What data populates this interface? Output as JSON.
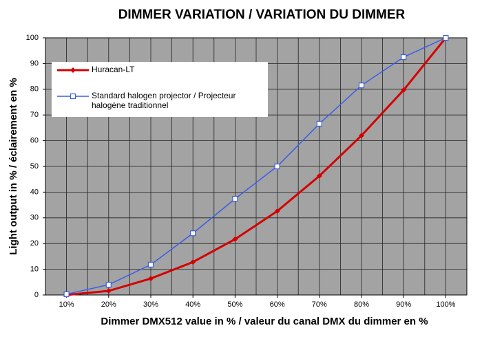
{
  "chart_data": {
    "type": "line",
    "title": "DIMMER VARIATION / VARIATION DU DIMMER",
    "x_label": "Dimmer DMX512 value in % / valeur du canal DMX du dimmer en %",
    "y_label": "Light output in % / éclairement en %",
    "categories": [
      "10%",
      "20%",
      "30%",
      "40%",
      "50%",
      "60%",
      "70%",
      "80%",
      "90%",
      "100%"
    ],
    "series": [
      {
        "name": "Huracan-LT",
        "color": "#d40000",
        "marker": "diamond",
        "values": [
          0,
          1.6,
          6.4,
          12.8,
          21.7,
          32.6,
          46.3,
          62,
          79.7,
          100
        ]
      },
      {
        "name": "Standard halogen projector / Projecteur halogène traditionnel",
        "color": "#3a5de8",
        "marker": "square",
        "values": [
          0.3,
          4,
          11.8,
          24,
          37.4,
          50,
          66.6,
          81.5,
          92.5,
          100
        ]
      }
    ],
    "ylim": [
      0,
      100
    ],
    "yticks": [
      0,
      10,
      20,
      30,
      40,
      50,
      60,
      70,
      80,
      90,
      100
    ],
    "grid": true,
    "legend": "upper-left"
  }
}
